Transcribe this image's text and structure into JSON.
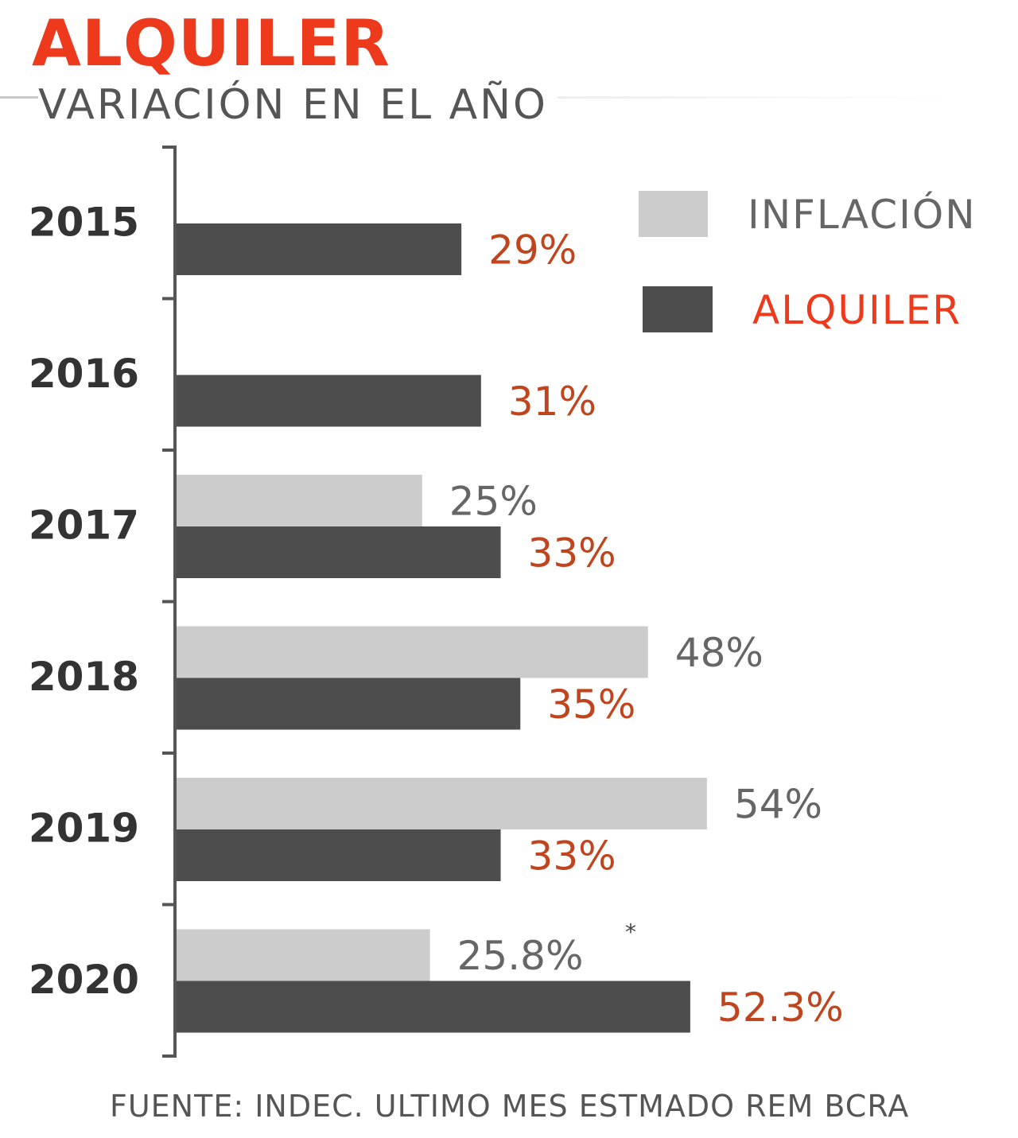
{
  "header": {
    "title": "ALQUILER",
    "subtitle": "VARIACIÓN EN EL AÑO"
  },
  "footer": {
    "source": "FUENTE: INDEC. ULTIMO MES ESTMADO REM BCRA"
  },
  "colors": {
    "accent": "#ee3a1c",
    "inflacion_bar": "#cccccc",
    "alquiler_bar": "#4d4d4d",
    "alquiler_label": "#c0451f",
    "inflacion_label": "#666666",
    "year_label": "#333333"
  },
  "chart_data": {
    "type": "bar",
    "orientation": "horizontal",
    "categories": [
      "2015",
      "2016",
      "2017",
      "2018",
      "2019",
      "2020"
    ],
    "series": [
      {
        "name": "INFLACIÓN",
        "values": [
          null,
          null,
          25,
          48,
          54,
          25.8
        ],
        "labels": [
          null,
          null,
          "25%",
          "48%",
          "54%",
          "25.8%"
        ],
        "color": "#cccccc"
      },
      {
        "name": "ALQUILER",
        "values": [
          29,
          31,
          33,
          35,
          33,
          52.3
        ],
        "labels": [
          "29%",
          "31%",
          "33%",
          "35%",
          "33%",
          "52.3%"
        ],
        "color": "#4d4d4d"
      }
    ],
    "annotations": [
      {
        "category": "2020",
        "series": "INFLACIÓN",
        "text": "*"
      }
    ],
    "legend_position": "top-right",
    "grid": false,
    "xlim": [
      0,
      60
    ]
  }
}
